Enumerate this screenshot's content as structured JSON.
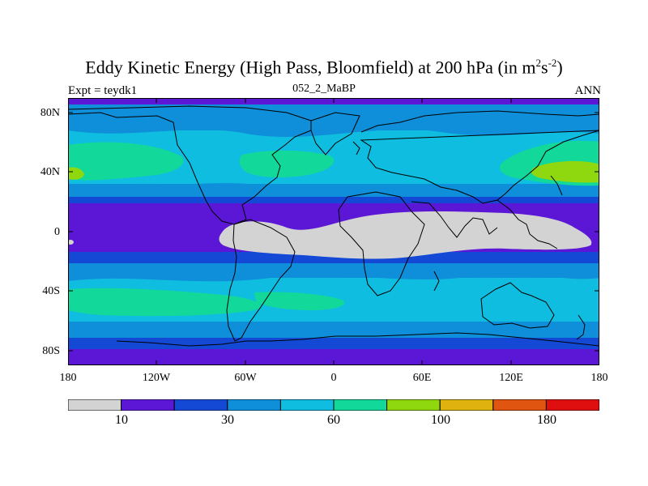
{
  "title_main": "Eddy Kinetic Energy (High Pass, Bloomfield) at 200 hPa (in m",
  "title_sup1": "2",
  "title_mid": "s",
  "title_sup2": "-2",
  "title_end": ")",
  "sub_left": "Expt = teydk1",
  "sub_center": "052_2_MaBP",
  "sub_right": "ANN",
  "lat_ticks": [
    "80N",
    "40N",
    "0",
    "40S",
    "80S"
  ],
  "lon_ticks": [
    "180",
    "120W",
    "60W",
    "0",
    "60E",
    "120E",
    "180"
  ],
  "colorbar": {
    "colors": [
      "#d3d3d3",
      "#5b16d6",
      "#1449d6",
      "#0f8ed9",
      "#0fbde0",
      "#12d89a",
      "#8fd80f",
      "#e0b20f",
      "#e0550f",
      "#e00f0f"
    ],
    "labels": [
      "10",
      "30",
      "60",
      "100",
      "180"
    ]
  },
  "map_colors": {
    "gray": "#d3d3d3",
    "purple": "#5b16d6",
    "blue": "#1449d6",
    "mid_blue": "#0f8ed9",
    "cyan": "#0fbde0",
    "green": "#12d89a",
    "lime": "#8fd80f"
  }
}
